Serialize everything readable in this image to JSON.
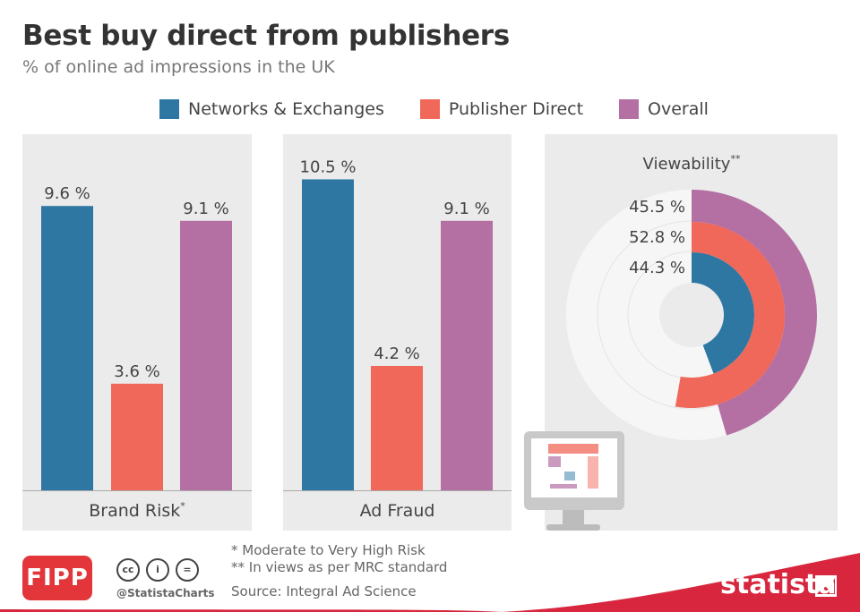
{
  "title": "Best buy direct from publishers",
  "subtitle": "% of online ad impressions in the UK",
  "colors": {
    "networks": "#2e77a2",
    "publisher": "#f0685a",
    "overall": "#b470a3",
    "panel_bg": "#ebebeb",
    "donut_bg": "#f6f6f6",
    "brand_red": "#d7263d"
  },
  "chart_data": [
    {
      "type": "bar",
      "title": "Brand Risk*",
      "categories": [
        "Networks & Exchanges",
        "Publisher Direct",
        "Overall"
      ],
      "values": [
        9.6,
        3.6,
        9.1
      ],
      "value_labels": [
        "9.6 %",
        "3.6 %",
        "9.1 %"
      ],
      "ylim": [
        0,
        11.2
      ]
    },
    {
      "type": "bar",
      "title": "Ad Fraud",
      "categories": [
        "Networks & Exchanges",
        "Publisher Direct",
        "Overall"
      ],
      "values": [
        10.5,
        4.2,
        9.1
      ],
      "value_labels": [
        "10.5 %",
        "4.2 %",
        "9.1 %"
      ],
      "ylim": [
        0,
        11.2
      ]
    },
    {
      "type": "pie",
      "title": "Viewability**",
      "categories": [
        "Overall",
        "Publisher Direct",
        "Networks & Exchanges"
      ],
      "values": [
        45.5,
        52.8,
        44.3
      ],
      "value_labels": [
        "45.5 %",
        "52.8 %",
        "44.3 %"
      ]
    }
  ],
  "legend": [
    "Networks & Exchanges",
    "Publisher Direct",
    "Overall"
  ],
  "footnotes": [
    "* Moderate to Very High Risk",
    "** In views as per MRC standard"
  ],
  "source": "Source: Integral Ad Science",
  "logos": {
    "partner": "FIPP",
    "brand": "statista",
    "handle": "@StatistaCharts"
  },
  "icons": [
    "computer-monitor-icon",
    "cc-icon",
    "by-icon",
    "nd-icon"
  ]
}
